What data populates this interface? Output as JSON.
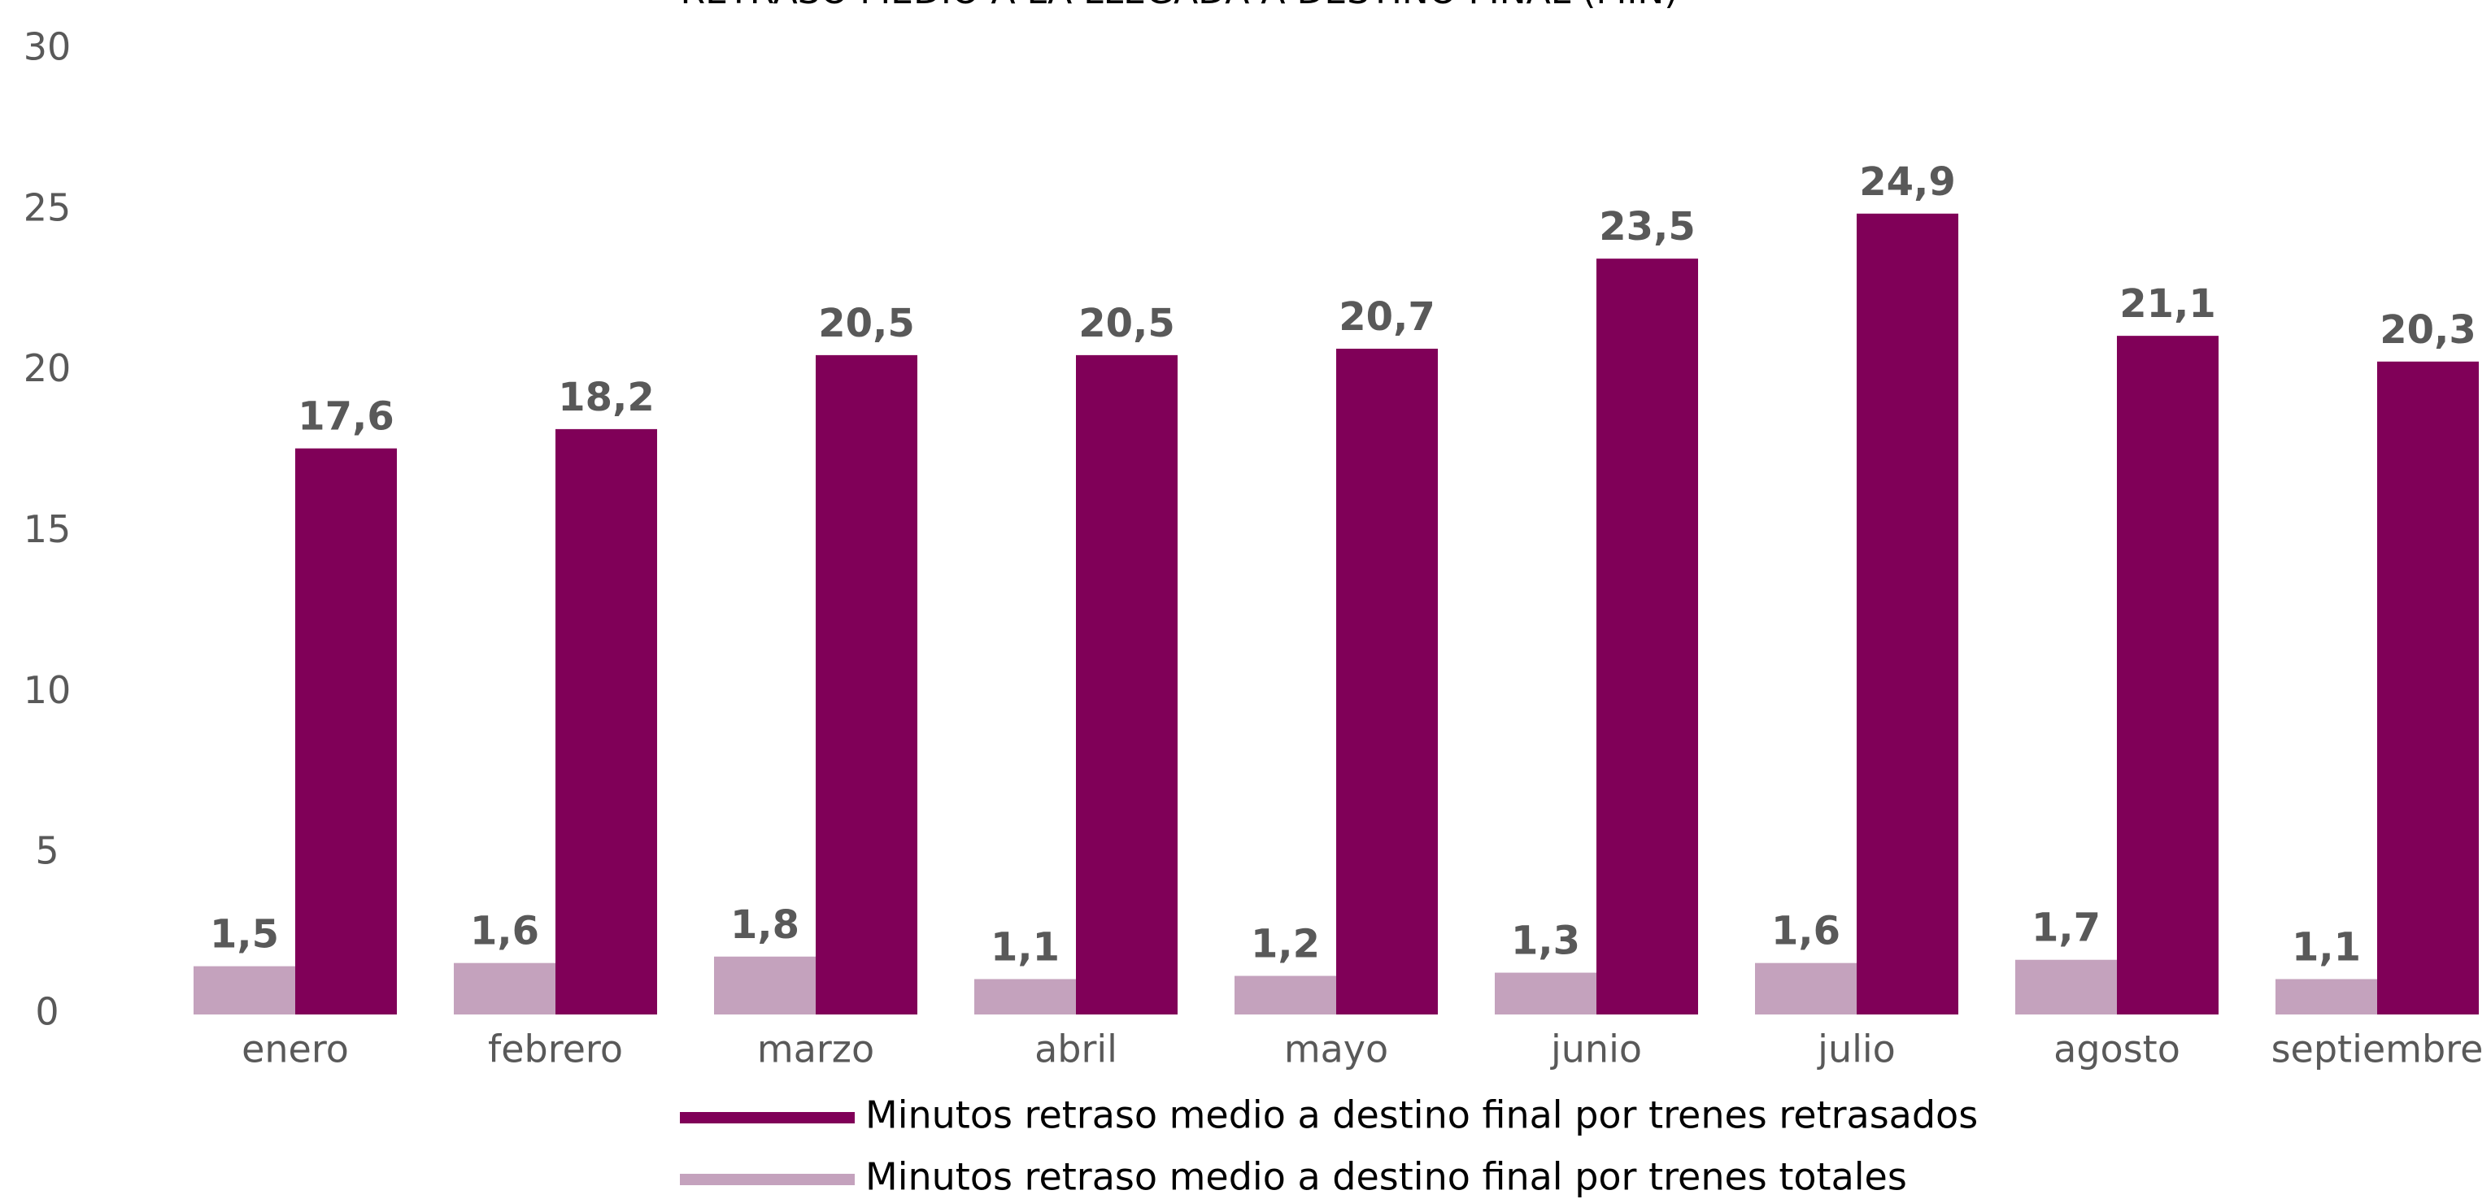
{
  "chart_data": {
    "type": "bar",
    "title": "RETRASO MEDIO A LA LLEGADA A DESTINO FINAL (MIN)",
    "categories": [
      "enero",
      "febrero",
      "marzo",
      "abril",
      "mayo",
      "junio",
      "julio",
      "agosto",
      "septiembre"
    ],
    "series": [
      {
        "name": "Minutos retraso medio a destino final por trenes totales",
        "color": "#c4a2bd",
        "values": [
          1.5,
          1.6,
          1.8,
          1.1,
          1.2,
          1.3,
          1.6,
          1.7,
          1.1
        ],
        "value_labels": [
          "1,5",
          "1,6",
          "1,8",
          "1,1",
          "1,2",
          "1,3",
          "1,6",
          "1,7",
          "1,1"
        ]
      },
      {
        "name": "Minutos retraso medio a destino final por trenes retrasados",
        "color": "#800058",
        "values": [
          17.6,
          18.2,
          20.5,
          20.5,
          20.7,
          23.5,
          24.9,
          21.1,
          20.3
        ],
        "value_labels": [
          "17,6",
          "18,2",
          "20,5",
          "20,5",
          "20,7",
          "23,5",
          "24,9",
          "21,1",
          "20,3"
        ]
      }
    ],
    "ylim": [
      0,
      30
    ],
    "yticks": [
      0,
      5,
      10,
      15,
      20,
      25,
      30
    ],
    "grid": false,
    "legend": "bottom"
  }
}
